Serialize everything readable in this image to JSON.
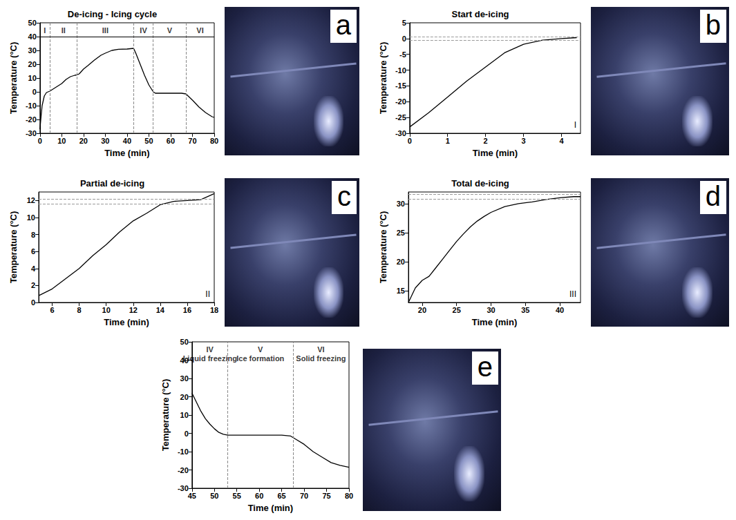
{
  "chart_data": [
    {
      "type": "line",
      "panel": "a",
      "title": "De-icing - Icing cycle",
      "x_label": "Time (min)",
      "y_label": "Temperature (°C)",
      "color": "#000000",
      "x": [
        0,
        0.5,
        1,
        2,
        3,
        4.5,
        6,
        8,
        10,
        12,
        14,
        16,
        17,
        18,
        20,
        22,
        25,
        28,
        30,
        33,
        36,
        40,
        43,
        44,
        46,
        48,
        50,
        52,
        53,
        55,
        60,
        65,
        67,
        70,
        73,
        76,
        79,
        80
      ],
      "values": [
        -27,
        -18,
        -10,
        -3,
        -0.5,
        0.5,
        2,
        4,
        6,
        9,
        11,
        12,
        12.3,
        13,
        16.5,
        19,
        23,
        26.5,
        28,
        30,
        30.8,
        31,
        31.5,
        28,
        20,
        12,
        5,
        0,
        -1,
        -1,
        -1,
        -1,
        -1.5,
        -6,
        -11,
        -15,
        -18,
        -18.5
      ],
      "xlim": [
        0,
        80
      ],
      "xticks": [
        0,
        10,
        20,
        30,
        40,
        50,
        60,
        70,
        80
      ],
      "ylim": [
        -30,
        50
      ],
      "yticks": [
        -30,
        -20,
        -10,
        0,
        10,
        20,
        30,
        40,
        50
      ],
      "vlines": [
        4.5,
        17,
        43,
        52,
        67
      ],
      "header_line": 40,
      "regions": [
        {
          "label": "I"
        },
        {
          "label": "II"
        },
        {
          "label": "III"
        },
        {
          "label": "IV"
        },
        {
          "label": "V"
        },
        {
          "label": "VI"
        }
      ],
      "grid": false
    },
    {
      "type": "line",
      "panel": "b",
      "title": "Start de-icing",
      "x_label": "Time (min)",
      "y_label": "Temperature (°C)",
      "color": "#000000",
      "x": [
        0,
        0.5,
        1,
        1.5,
        2,
        2.5,
        3,
        3.5,
        4,
        4.4
      ],
      "values": [
        -28,
        -23.5,
        -18.5,
        -13.5,
        -9,
        -4.5,
        -1.8,
        -0.5,
        0,
        0.3
      ],
      "xlim": [
        0,
        4.5
      ],
      "xticks": [
        0,
        1,
        2,
        3,
        4
      ],
      "ylim": [
        -30,
        5
      ],
      "yticks": [
        -30,
        -25,
        -20,
        -15,
        -10,
        -5,
        0,
        5
      ],
      "hlines": [
        0.6,
        -0.6
      ],
      "corner_label": "I",
      "grid": false
    },
    {
      "type": "line",
      "panel": "c",
      "title": "Partial de-icing",
      "x_label": "Time (min)",
      "y_label": "Temperature (°C)",
      "color": "#000000",
      "x": [
        5,
        6,
        7,
        8,
        9,
        10,
        11,
        12,
        13,
        14,
        15,
        16,
        17,
        18
      ],
      "values": [
        0.8,
        1.6,
        2.8,
        4,
        5.5,
        6.8,
        8.3,
        9.6,
        10.5,
        11.5,
        11.9,
        12,
        12.1,
        12.8
      ],
      "xlim": [
        5,
        18
      ],
      "xticks": [
        6,
        8,
        10,
        12,
        14,
        16,
        18
      ],
      "ylim": [
        0,
        13
      ],
      "yticks": [
        0,
        2,
        4,
        6,
        8,
        10,
        12
      ],
      "hlines": [
        11.6,
        12.2
      ],
      "corner_label": "II",
      "grid": false
    },
    {
      "type": "line",
      "panel": "d",
      "title": "Total de-icing",
      "x_label": "Time (min)",
      "y_label": "Temperature (°C)",
      "color": "#000000",
      "x": [
        18,
        19,
        20,
        21,
        22,
        23,
        24,
        25,
        26,
        27,
        28,
        29,
        30,
        32,
        34,
        36,
        38,
        40,
        42,
        43
      ],
      "values": [
        13,
        15.5,
        16.8,
        17.5,
        19,
        20.5,
        22,
        23.5,
        24.8,
        26,
        27,
        27.8,
        28.5,
        29.5,
        30,
        30.3,
        30.7,
        31,
        31.2,
        31.2
      ],
      "xlim": [
        18,
        43
      ],
      "xticks": [
        20,
        25,
        30,
        35,
        40
      ],
      "ylim": [
        13,
        32
      ],
      "yticks": [
        15,
        20,
        25,
        30
      ],
      "hlines": [
        30.8,
        31.6
      ],
      "corner_label": "III",
      "grid": false
    },
    {
      "type": "line",
      "panel": "e",
      "x_label": "Time (min)",
      "y_label": "Temperature (°C)",
      "color": "#000000",
      "x": [
        45,
        46,
        47,
        48,
        49,
        50,
        51,
        52,
        53,
        55,
        58,
        60,
        63,
        65,
        67,
        68,
        70,
        72,
        74,
        76,
        78,
        80
      ],
      "values": [
        22,
        17,
        12,
        8,
        5,
        2.5,
        0.5,
        -0.5,
        -1,
        -1,
        -1,
        -1,
        -1,
        -1,
        -1.5,
        -3,
        -6,
        -10,
        -13,
        -16,
        -17.5,
        -18.5
      ],
      "xlim": [
        45,
        80
      ],
      "xticks": [
        45,
        50,
        55,
        60,
        65,
        70,
        75,
        80
      ],
      "ylim": [
        -30,
        50
      ],
      "yticks": [
        -30,
        -20,
        -10,
        0,
        10,
        20,
        30,
        40,
        50
      ],
      "vlines": [
        53,
        67.5
      ],
      "regions": [
        {
          "label": "IV",
          "text": "Liquid freezing"
        },
        {
          "label": "V",
          "text": "Ice formation"
        },
        {
          "label": "VI",
          "text": "Solid freezing"
        }
      ],
      "grid": false
    }
  ]
}
